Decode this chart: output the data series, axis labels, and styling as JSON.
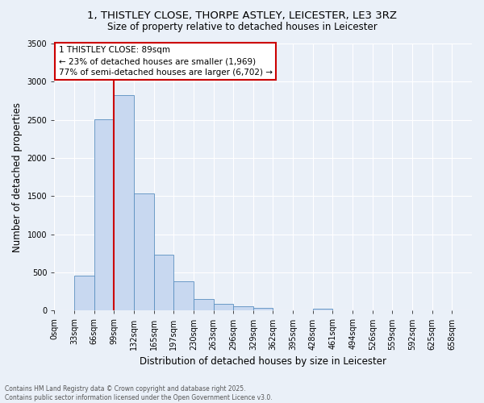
{
  "title_line1": "1, THISTLEY CLOSE, THORPE ASTLEY, LEICESTER, LE3 3RZ",
  "title_line2": "Size of property relative to detached houses in Leicester",
  "xlabel": "Distribution of detached houses by size in Leicester",
  "ylabel": "Number of detached properties",
  "bar_color": "#c8d8f0",
  "bar_edge_color": "#5a8fc0",
  "categories": [
    "0sqm",
    "33sqm",
    "66sqm",
    "99sqm",
    "132sqm",
    "165sqm",
    "197sqm",
    "230sqm",
    "263sqm",
    "296sqm",
    "329sqm",
    "362sqm",
    "395sqm",
    "428sqm",
    "461sqm",
    "494sqm",
    "526sqm",
    "559sqm",
    "592sqm",
    "625sqm",
    "658sqm"
  ],
  "values": [
    5,
    460,
    2510,
    2820,
    1530,
    730,
    380,
    150,
    85,
    55,
    35,
    0,
    0,
    25,
    0,
    0,
    0,
    0,
    0,
    0,
    0
  ],
  "ylim": [
    0,
    3500
  ],
  "yticks": [
    0,
    500,
    1000,
    1500,
    2000,
    2500,
    3000,
    3500
  ],
  "vline_color": "#cc0000",
  "annotation_title": "1 THISTLEY CLOSE: 89sqm",
  "annotation_line2": "← 23% of detached houses are smaller (1,969)",
  "annotation_line3": "77% of semi-detached houses are larger (6,702) →",
  "annotation_box_color": "#cc0000",
  "footnote_line1": "Contains HM Land Registry data © Crown copyright and database right 2025.",
  "footnote_line2": "Contains public sector information licensed under the Open Government Licence v3.0.",
  "background_color": "#eaf0f8",
  "grid_color": "#ffffff",
  "title_fontsize": 9.5,
  "subtitle_fontsize": 8.5,
  "axis_label_fontsize": 8.5,
  "tick_fontsize": 7,
  "annotation_fontsize": 7.5,
  "footnote_fontsize": 5.5
}
